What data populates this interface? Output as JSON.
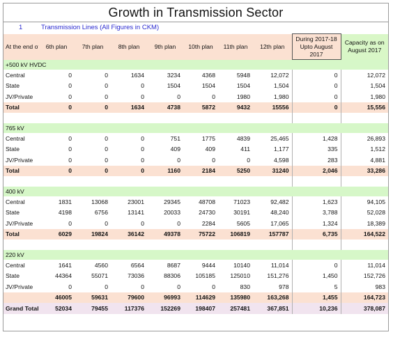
{
  "title": "Growth in Transmission Sector",
  "subtitle": {
    "number": "1",
    "label": "Transmission Lines   (All Figures in CKM)"
  },
  "headers": [
    "At the end of",
    "6th plan",
    "7th plan",
    "8th plan",
    "9th plan",
    "10th plan",
    "11th plan",
    "12th plan",
    "During 2017-18 Upto August 2017",
    "Capacity as on August 2017"
  ],
  "sections": [
    {
      "name": "+500 kV HVDC",
      "rows": [
        {
          "label": "Central",
          "values": [
            "0",
            "0",
            "1634",
            "3234",
            "4368",
            "5948",
            "12,072",
            "0",
            "12,072"
          ]
        },
        {
          "label": "State",
          "values": [
            "0",
            "0",
            "0",
            "1504",
            "1504",
            "1504",
            "1,504",
            "0",
            "1,504"
          ]
        },
        {
          "label": "JV/Private",
          "values": [
            "0",
            "0",
            "0",
            "0",
            "0",
            "1980",
            "1,980",
            "0",
            "1,980"
          ]
        }
      ],
      "total": {
        "label": "Total",
        "values": [
          "0",
          "0",
          "1634",
          "4738",
          "5872",
          "9432",
          "15556",
          "0",
          "15,556"
        ]
      }
    },
    {
      "name": "765 kV",
      "rows": [
        {
          "label": "Central",
          "values": [
            "0",
            "0",
            "0",
            "751",
            "1775",
            "4839",
            "25,465",
            "1,428",
            "26,893"
          ]
        },
        {
          "label": "State",
          "values": [
            "0",
            "0",
            "0",
            "409",
            "409",
            "411",
            "1,177",
            "335",
            "1,512"
          ]
        },
        {
          "label": "JV/Private",
          "values": [
            "0",
            "0",
            "0",
            "0",
            "0",
            "0",
            "4,598",
            "283",
            "4,881"
          ]
        }
      ],
      "total": {
        "label": "Total",
        "values": [
          "0",
          "0",
          "0",
          "1160",
          "2184",
          "5250",
          "31240",
          "2,046",
          "33,286"
        ]
      }
    },
    {
      "name": "400 kV",
      "rows": [
        {
          "label": "Central",
          "values": [
            "1831",
            "13068",
            "23001",
            "29345",
            "48708",
            "71023",
            "92,482",
            "1,623",
            "94,105"
          ]
        },
        {
          "label": "State",
          "values": [
            "4198",
            "6756",
            "13141",
            "20033",
            "24730",
            "30191",
            "48,240",
            "3,788",
            "52,028"
          ]
        },
        {
          "label": "JV/Private",
          "values": [
            "0",
            "0",
            "0",
            "0",
            "2284",
            "5605",
            "17,065",
            "1,324",
            "18,389"
          ]
        }
      ],
      "total": {
        "label": "Total",
        "values": [
          "6029",
          "19824",
          "36142",
          "49378",
          "75722",
          "106819",
          "157787",
          "6,735",
          "164,522"
        ]
      }
    },
    {
      "name": "220 kV",
      "rows": [
        {
          "label": "Central",
          "values": [
            "1641",
            "4560",
            "6564",
            "8687",
            "9444",
            "10140",
            "11,014",
            "0",
            "11,014"
          ]
        },
        {
          "label": "State",
          "values": [
            "44364",
            "55071",
            "73036",
            "88306",
            "105185",
            "125010",
            "151,276",
            "1,450",
            "152,726"
          ]
        },
        {
          "label": "JV/Private",
          "values": [
            "0",
            "0",
            "0",
            "0",
            "0",
            "830",
            "978",
            "5",
            "983"
          ]
        }
      ],
      "total": {
        "label": "",
        "values": [
          "46005",
          "59631",
          "79600",
          "96993",
          "114629",
          "135980",
          "163,268",
          "1,455",
          "164,723"
        ]
      }
    }
  ],
  "grand_total": {
    "label": "Grand Total",
    "values": [
      "52034",
      "79455",
      "117376",
      "152269",
      "198407",
      "257481",
      "367,851",
      "10,236",
      "378,087"
    ]
  }
}
